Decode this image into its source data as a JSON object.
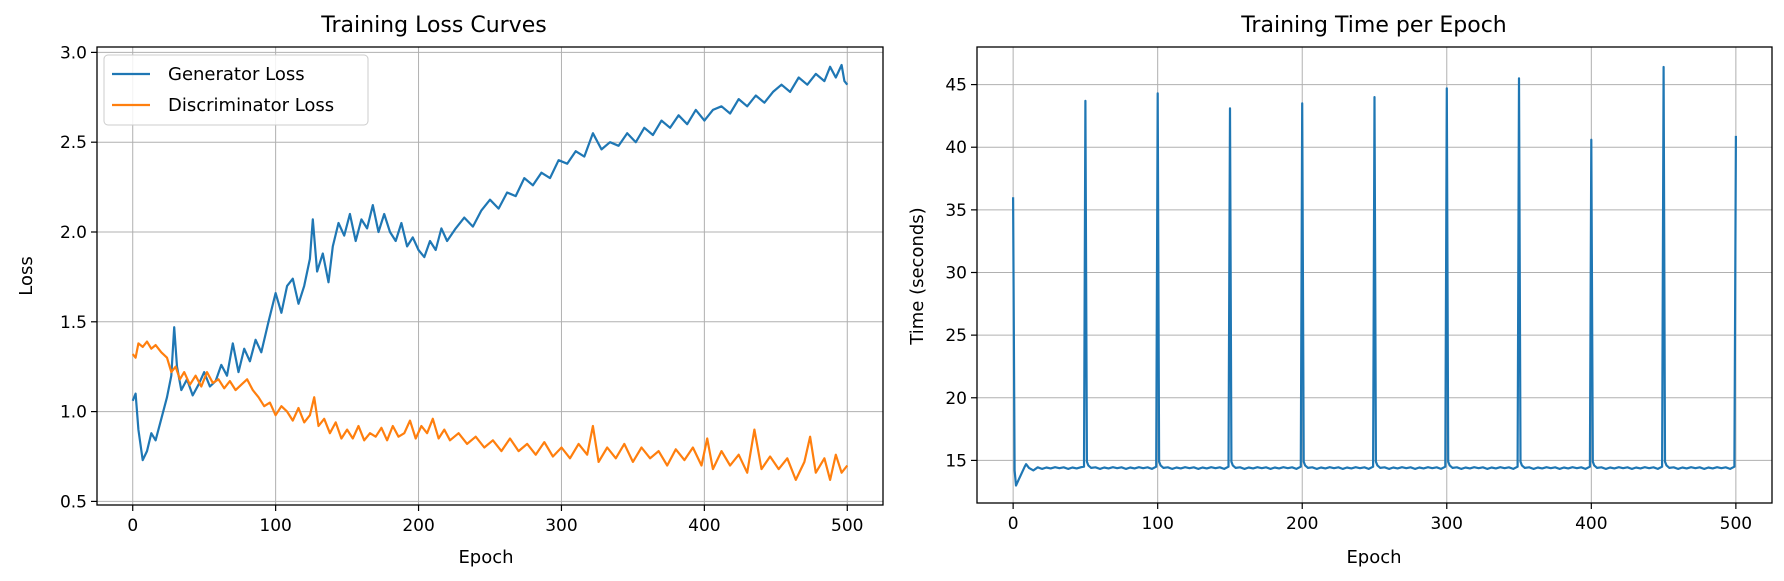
{
  "chart_data": [
    {
      "type": "line",
      "title": "Training Loss Curves",
      "xlabel": "Epoch",
      "ylabel": "Loss",
      "xlim": [
        -25,
        525
      ],
      "ylim": [
        0.48,
        3.03
      ],
      "xticks": [
        0,
        100,
        200,
        300,
        400,
        500
      ],
      "yticks": [
        0.5,
        1.0,
        1.5,
        2.0,
        2.5,
        3.0
      ],
      "ytick_format": 1,
      "grid": true,
      "legend": "upper-left",
      "series": [
        {
          "name": "Generator Loss",
          "color": "#1f77b4",
          "points": [
            [
              0,
              1.06
            ],
            [
              2,
              1.1
            ],
            [
              4,
              0.9
            ],
            [
              7,
              0.73
            ],
            [
              10,
              0.78
            ],
            [
              13,
              0.88
            ],
            [
              16,
              0.84
            ],
            [
              20,
              0.96
            ],
            [
              24,
              1.08
            ],
            [
              27,
              1.2
            ],
            [
              29,
              1.47
            ],
            [
              31,
              1.25
            ],
            [
              34,
              1.12
            ],
            [
              38,
              1.18
            ],
            [
              42,
              1.09
            ],
            [
              46,
              1.15
            ],
            [
              50,
              1.22
            ],
            [
              54,
              1.14
            ],
            [
              58,
              1.17
            ],
            [
              62,
              1.26
            ],
            [
              66,
              1.2
            ],
            [
              70,
              1.38
            ],
            [
              74,
              1.22
            ],
            [
              78,
              1.35
            ],
            [
              82,
              1.28
            ],
            [
              86,
              1.4
            ],
            [
              90,
              1.33
            ],
            [
              95,
              1.5
            ],
            [
              100,
              1.66
            ],
            [
              104,
              1.55
            ],
            [
              108,
              1.7
            ],
            [
              112,
              1.74
            ],
            [
              116,
              1.6
            ],
            [
              120,
              1.7
            ],
            [
              124,
              1.85
            ],
            [
              126,
              2.07
            ],
            [
              129,
              1.78
            ],
            [
              133,
              1.88
            ],
            [
              137,
              1.72
            ],
            [
              140,
              1.92
            ],
            [
              144,
              2.05
            ],
            [
              148,
              1.98
            ],
            [
              152,
              2.1
            ],
            [
              156,
              1.95
            ],
            [
              160,
              2.07
            ],
            [
              164,
              2.02
            ],
            [
              168,
              2.15
            ],
            [
              172,
              2.0
            ],
            [
              176,
              2.1
            ],
            [
              180,
              2.0
            ],
            [
              184,
              1.95
            ],
            [
              188,
              2.05
            ],
            [
              192,
              1.92
            ],
            [
              196,
              1.97
            ],
            [
              200,
              1.9
            ],
            [
              204,
              1.86
            ],
            [
              208,
              1.95
            ],
            [
              212,
              1.9
            ],
            [
              216,
              2.02
            ],
            [
              220,
              1.95
            ],
            [
              226,
              2.02
            ],
            [
              232,
              2.08
            ],
            [
              238,
              2.03
            ],
            [
              244,
              2.12
            ],
            [
              250,
              2.18
            ],
            [
              256,
              2.13
            ],
            [
              262,
              2.22
            ],
            [
              268,
              2.2
            ],
            [
              274,
              2.3
            ],
            [
              280,
              2.26
            ],
            [
              286,
              2.33
            ],
            [
              292,
              2.3
            ],
            [
              298,
              2.4
            ],
            [
              304,
              2.38
            ],
            [
              310,
              2.45
            ],
            [
              316,
              2.42
            ],
            [
              322,
              2.55
            ],
            [
              328,
              2.46
            ],
            [
              334,
              2.5
            ],
            [
              340,
              2.48
            ],
            [
              346,
              2.55
            ],
            [
              352,
              2.5
            ],
            [
              358,
              2.58
            ],
            [
              364,
              2.54
            ],
            [
              370,
              2.62
            ],
            [
              376,
              2.58
            ],
            [
              382,
              2.65
            ],
            [
              388,
              2.6
            ],
            [
              394,
              2.68
            ],
            [
              400,
              2.62
            ],
            [
              406,
              2.68
            ],
            [
              412,
              2.7
            ],
            [
              418,
              2.66
            ],
            [
              424,
              2.74
            ],
            [
              430,
              2.7
            ],
            [
              436,
              2.76
            ],
            [
              442,
              2.72
            ],
            [
              448,
              2.78
            ],
            [
              454,
              2.82
            ],
            [
              460,
              2.78
            ],
            [
              466,
              2.86
            ],
            [
              472,
              2.82
            ],
            [
              478,
              2.88
            ],
            [
              484,
              2.84
            ],
            [
              488,
              2.92
            ],
            [
              492,
              2.86
            ],
            [
              496,
              2.93
            ],
            [
              498,
              2.84
            ],
            [
              500,
              2.82
            ]
          ]
        },
        {
          "name": "Discriminator Loss",
          "color": "#ff7f0e",
          "points": [
            [
              0,
              1.32
            ],
            [
              2,
              1.3
            ],
            [
              4,
              1.38
            ],
            [
              7,
              1.36
            ],
            [
              10,
              1.39
            ],
            [
              13,
              1.35
            ],
            [
              16,
              1.37
            ],
            [
              20,
              1.33
            ],
            [
              24,
              1.3
            ],
            [
              27,
              1.22
            ],
            [
              30,
              1.25
            ],
            [
              33,
              1.18
            ],
            [
              36,
              1.22
            ],
            [
              40,
              1.15
            ],
            [
              44,
              1.2
            ],
            [
              48,
              1.14
            ],
            [
              52,
              1.22
            ],
            [
              56,
              1.16
            ],
            [
              60,
              1.18
            ],
            [
              64,
              1.13
            ],
            [
              68,
              1.17
            ],
            [
              72,
              1.12
            ],
            [
              76,
              1.15
            ],
            [
              80,
              1.18
            ],
            [
              84,
              1.12
            ],
            [
              88,
              1.08
            ],
            [
              92,
              1.03
            ],
            [
              96,
              1.05
            ],
            [
              100,
              0.98
            ],
            [
              104,
              1.03
            ],
            [
              108,
              1.0
            ],
            [
              112,
              0.95
            ],
            [
              116,
              1.02
            ],
            [
              120,
              0.94
            ],
            [
              124,
              0.98
            ],
            [
              127,
              1.08
            ],
            [
              130,
              0.92
            ],
            [
              134,
              0.96
            ],
            [
              138,
              0.88
            ],
            [
              142,
              0.94
            ],
            [
              146,
              0.85
            ],
            [
              150,
              0.9
            ],
            [
              154,
              0.85
            ],
            [
              158,
              0.92
            ],
            [
              162,
              0.84
            ],
            [
              166,
              0.88
            ],
            [
              170,
              0.86
            ],
            [
              174,
              0.91
            ],
            [
              178,
              0.84
            ],
            [
              182,
              0.92
            ],
            [
              186,
              0.86
            ],
            [
              190,
              0.88
            ],
            [
              194,
              0.95
            ],
            [
              198,
              0.85
            ],
            [
              202,
              0.92
            ],
            [
              206,
              0.88
            ],
            [
              210,
              0.96
            ],
            [
              214,
              0.85
            ],
            [
              218,
              0.9
            ],
            [
              222,
              0.84
            ],
            [
              228,
              0.88
            ],
            [
              234,
              0.82
            ],
            [
              240,
              0.86
            ],
            [
              246,
              0.8
            ],
            [
              252,
              0.84
            ],
            [
              258,
              0.78
            ],
            [
              264,
              0.85
            ],
            [
              270,
              0.78
            ],
            [
              276,
              0.82
            ],
            [
              282,
              0.76
            ],
            [
              288,
              0.83
            ],
            [
              294,
              0.75
            ],
            [
              300,
              0.8
            ],
            [
              306,
              0.74
            ],
            [
              312,
              0.82
            ],
            [
              318,
              0.76
            ],
            [
              322,
              0.92
            ],
            [
              326,
              0.72
            ],
            [
              332,
              0.8
            ],
            [
              338,
              0.74
            ],
            [
              344,
              0.82
            ],
            [
              350,
              0.72
            ],
            [
              356,
              0.8
            ],
            [
              362,
              0.74
            ],
            [
              368,
              0.78
            ],
            [
              374,
              0.7
            ],
            [
              380,
              0.79
            ],
            [
              386,
              0.73
            ],
            [
              392,
              0.8
            ],
            [
              398,
              0.7
            ],
            [
              402,
              0.85
            ],
            [
              406,
              0.68
            ],
            [
              412,
              0.78
            ],
            [
              418,
              0.7
            ],
            [
              424,
              0.76
            ],
            [
              430,
              0.66
            ],
            [
              435,
              0.9
            ],
            [
              440,
              0.68
            ],
            [
              446,
              0.75
            ],
            [
              452,
              0.68
            ],
            [
              458,
              0.74
            ],
            [
              464,
              0.62
            ],
            [
              470,
              0.72
            ],
            [
              474,
              0.86
            ],
            [
              478,
              0.66
            ],
            [
              484,
              0.74
            ],
            [
              488,
              0.62
            ],
            [
              492,
              0.76
            ],
            [
              496,
              0.66
            ],
            [
              500,
              0.7
            ]
          ]
        }
      ]
    },
    {
      "type": "line",
      "title": "Training Time per Epoch",
      "xlabel": "Epoch",
      "ylabel": "Time (seconds)",
      "xlim": [
        -25,
        525
      ],
      "ylim": [
        11.6,
        48.0
      ],
      "xticks": [
        0,
        100,
        200,
        300,
        400,
        500
      ],
      "yticks": [
        15,
        20,
        25,
        30,
        35,
        40,
        45
      ],
      "ytick_format": 0,
      "grid": true,
      "series": [
        {
          "name": "",
          "color": "#1f77b4",
          "baseline": 14.4,
          "start": [
            [
              0,
              36.0
            ],
            [
              1,
              14.2
            ],
            [
              2,
              13.0
            ],
            [
              4,
              13.5
            ],
            [
              6,
              14.0
            ],
            [
              8,
              14.5
            ],
            [
              9,
              14.7
            ],
            [
              11,
              14.4
            ],
            [
              14,
              14.2
            ]
          ],
          "spikes": [
            [
              50,
              43.7
            ],
            [
              100,
              44.3
            ],
            [
              150,
              43.1
            ],
            [
              200,
              43.5
            ],
            [
              250,
              44.0
            ],
            [
              300,
              44.7
            ],
            [
              350,
              45.5
            ],
            [
              400,
              40.6
            ],
            [
              450,
              46.4
            ],
            [
              500,
              40.9
            ]
          ]
        }
      ]
    }
  ]
}
